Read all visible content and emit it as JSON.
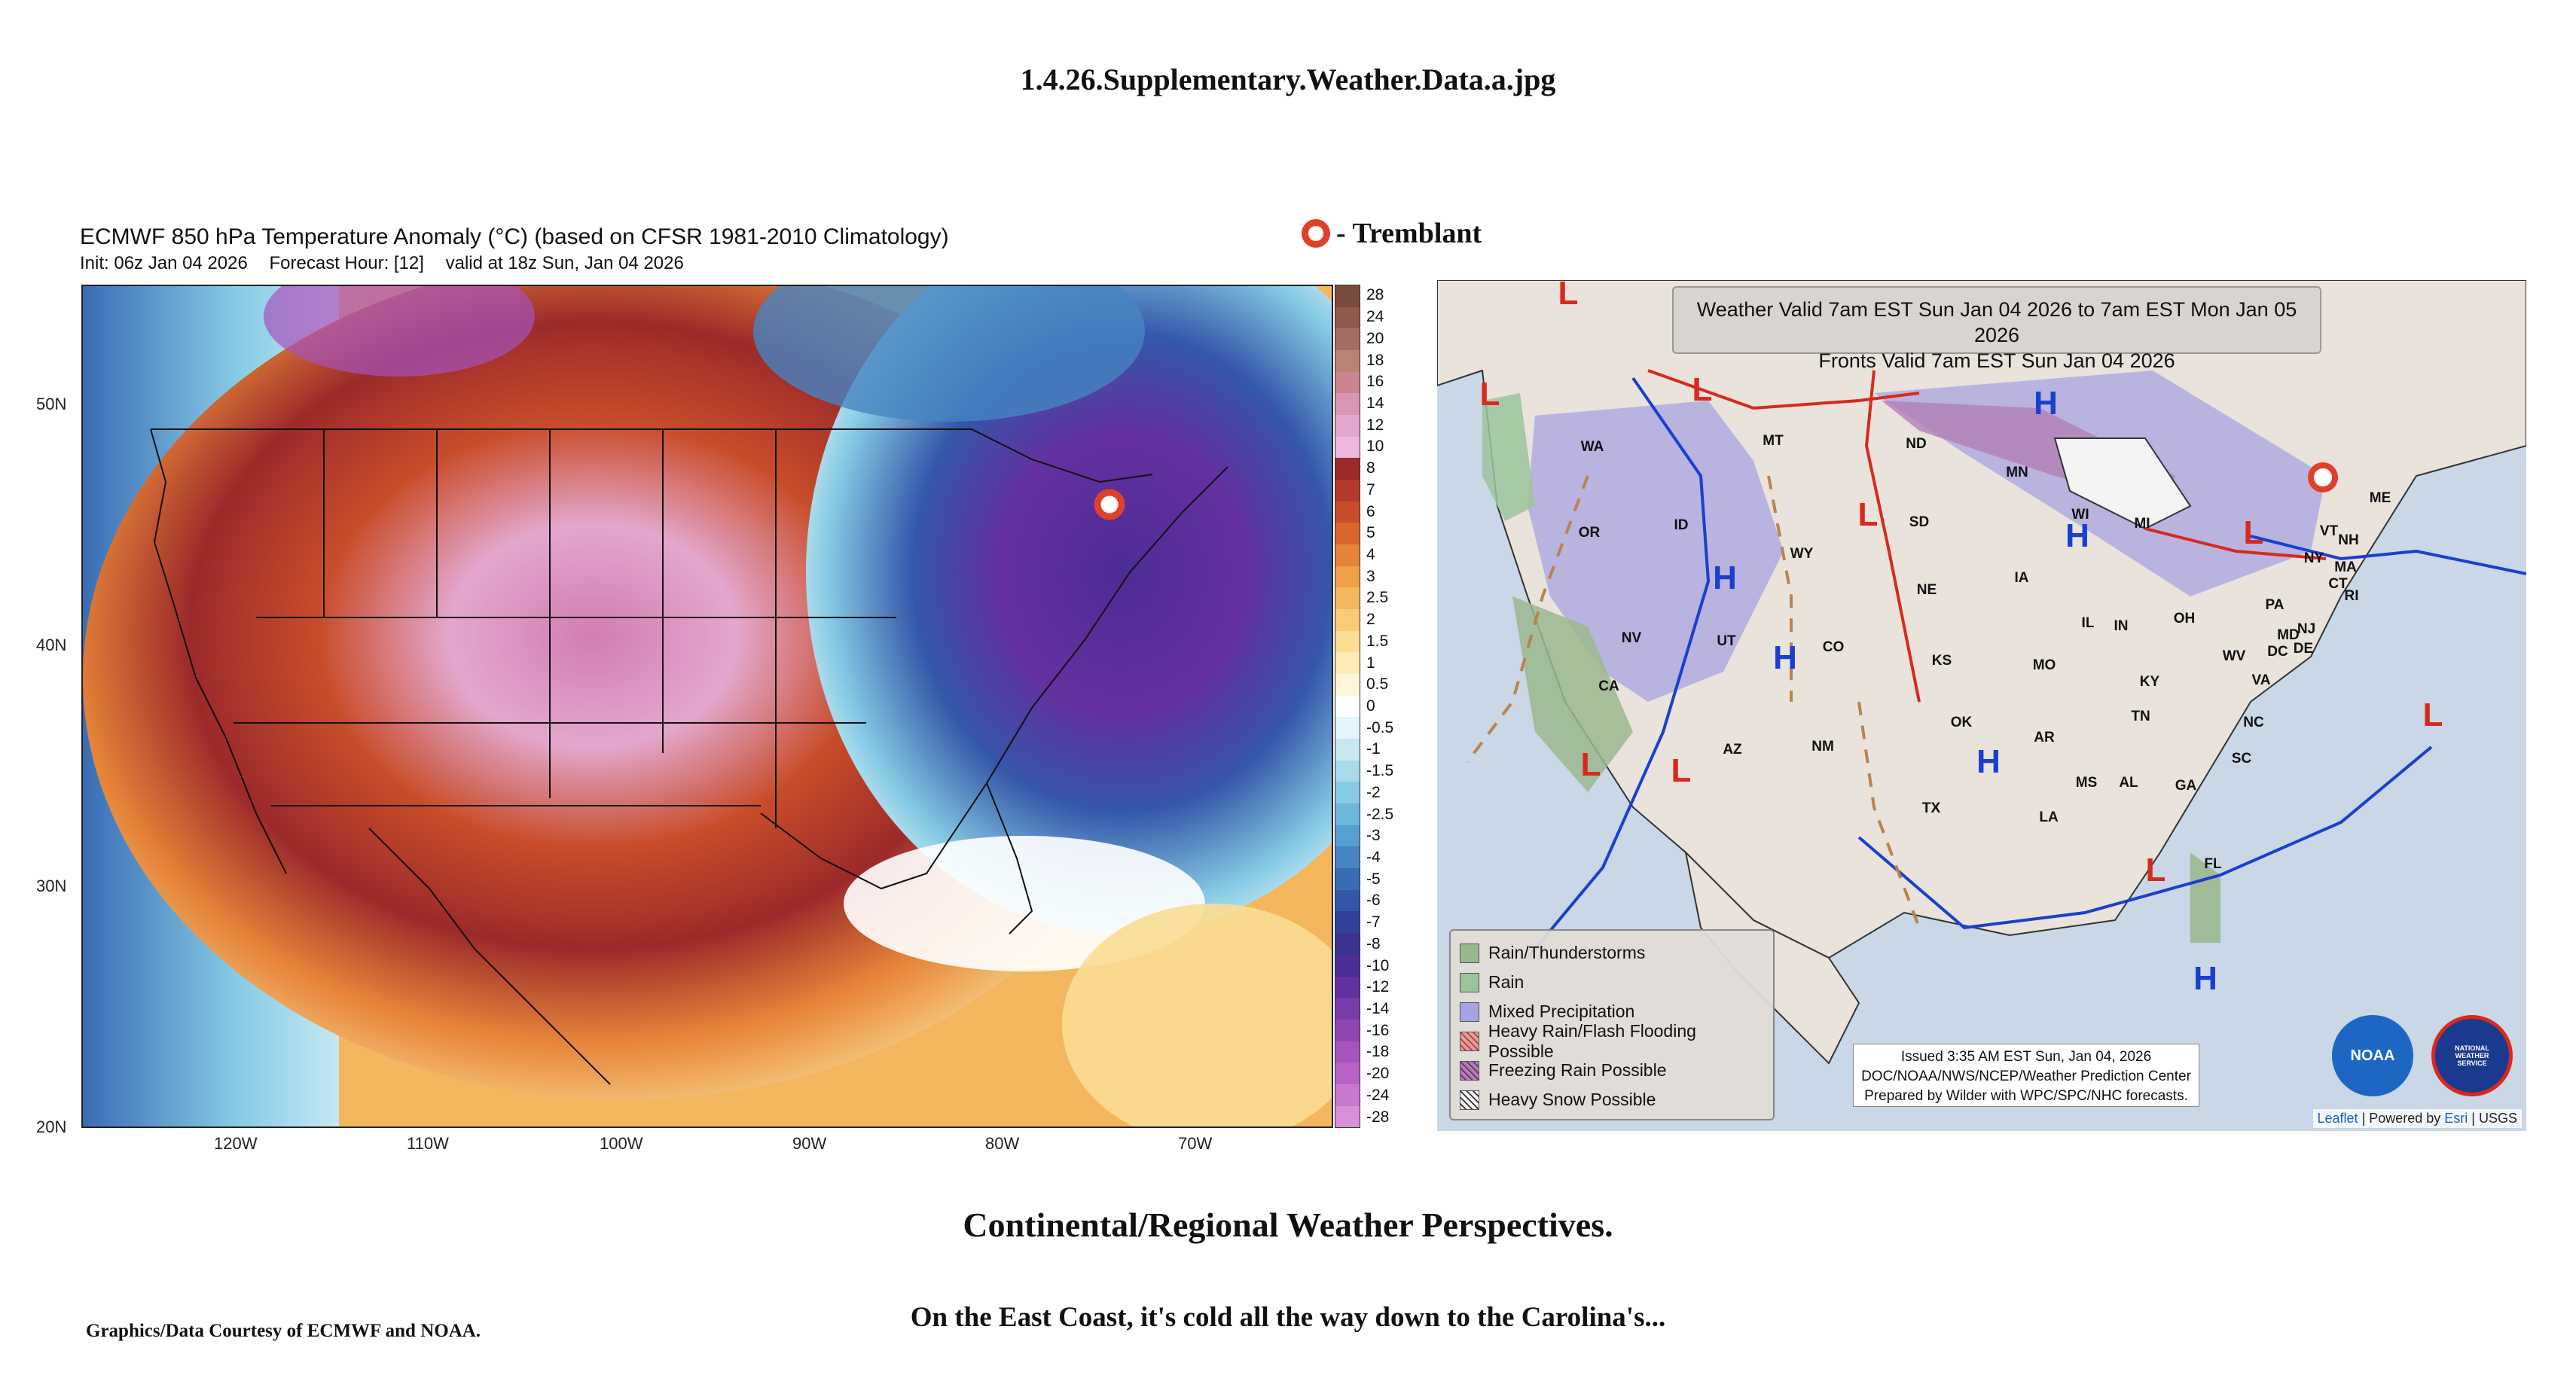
{
  "page": {
    "file_title": "1.4.26.Supplementary.Weather.Data.a.jpg",
    "marker_label": "- Tremblant",
    "subtitle": "Continental/Regional Weather Perspectives.",
    "caption": "On the East Coast, it's cold all the way down to the Carolina's...",
    "credit": "Graphics/Data Courtesy of ECMWF and NOAA."
  },
  "left_map": {
    "title": "ECMWF 850 hPa Temperature Anomaly (°C) (based on CFSR 1981-2010 Climatology)",
    "init": "Init: 06z Jan 04 2026",
    "forecast_hour": "Forecast Hour: [12]",
    "valid": "valid at 18z Sun, Jan 04 2026",
    "lat_labels": [
      "50N",
      "40N",
      "30N",
      "20N"
    ],
    "lon_labels": [
      "120W",
      "110W",
      "100W",
      "90W",
      "80W",
      "70W"
    ],
    "colorbar_labels": [
      "28",
      "24",
      "20",
      "18",
      "16",
      "14",
      "12",
      "10",
      "8",
      "7",
      "6",
      "5",
      "4",
      "3",
      "2.5",
      "2",
      "1.5",
      "1",
      "0.5",
      "0",
      "-0.5",
      "-1",
      "-1.5",
      "-2",
      "-2.5",
      "-3",
      "-4",
      "-5",
      "-6",
      "-7",
      "-8",
      "-10",
      "-12",
      "-14",
      "-16",
      "-18",
      "-20",
      "-24",
      "-28"
    ],
    "colorbar_colors": [
      "#7a4a3a",
      "#8f5a4c",
      "#a46d61",
      "#b98277",
      "#c9848f",
      "#d895b4",
      "#e3a7cc",
      "#eeb8de",
      "#9c2a2a",
      "#b23a28",
      "#c84d2a",
      "#d9662f",
      "#e58338",
      "#ee9f48",
      "#f4b75e",
      "#f8cc76",
      "#fbdd93",
      "#fcebb4",
      "#fdf6d9",
      "#ffffff",
      "#e4f4fa",
      "#c6e8f3",
      "#a6dbec",
      "#86cbe4",
      "#6cb8dc",
      "#579fd0",
      "#4685c2",
      "#3a6cb5",
      "#3456a8",
      "#31409a",
      "#3a338f",
      "#4c2c95",
      "#63319f",
      "#7a3ba9",
      "#9146b3",
      "#a653bc",
      "#b961c4",
      "#c978cf",
      "#d891d8"
    ]
  },
  "right_map": {
    "valid_line1": "Weather Valid 7am EST Sun Jan 04 2026 to 7am EST Mon Jan 05 2026",
    "valid_line2": "Fronts Valid 7am EST Sun Jan 04 2026",
    "states": [
      "WA",
      "OR",
      "ID",
      "MT",
      "WY",
      "NV",
      "UT",
      "CA",
      "AZ",
      "CO",
      "NM",
      "ND",
      "SD",
      "NE",
      "KS",
      "OK",
      "TX",
      "MN",
      "IA",
      "MO",
      "AR",
      "LA",
      "WI",
      "IL",
      "MI",
      "IN",
      "OH",
      "KY",
      "TN",
      "MS",
      "AL",
      "GA",
      "FL",
      "SC",
      "NC",
      "VA",
      "WV",
      "PA",
      "NY",
      "VT",
      "NH",
      "ME",
      "MA",
      "CT",
      "RI",
      "NJ",
      "DE",
      "MD",
      "DC"
    ],
    "legend": [
      {
        "label": "Rain/Thunderstorms",
        "color": "#9ab88e"
      },
      {
        "label": "Rain",
        "color": "#9cc49c"
      },
      {
        "label": "Mixed Precipitation",
        "color": "#a7a3e0"
      },
      {
        "label": "Heavy Rain/Flash Flooding Possible",
        "color": "#d9a2a2"
      },
      {
        "label": "Freezing Rain Possible",
        "color": "#b27fb5"
      },
      {
        "label": "Heavy Snow Possible",
        "color": "#f3f3f3"
      }
    ],
    "issued_line1": "Issued  3:35 AM EST  Sun, Jan 04, 2026",
    "issued_line2": "DOC/NOAA/NWS/NCEP/Weather Prediction Center",
    "issued_line3": "Prepared by Wilder with WPC/SPC/NHC forecasts.",
    "attrib_leaflet": "Leaflet",
    "attrib_mid": " | Powered by ",
    "attrib_esri": "Esri",
    "attrib_end": " | USGS",
    "noaa_logo": "NOAA",
    "nws_logo": "NATIONAL WEATHER SERVICE",
    "high_symbol": "H",
    "low_symbol": "L"
  },
  "colors": {
    "marker": "#e0402b",
    "high": "#1a3fcf",
    "low": "#d8291d"
  }
}
